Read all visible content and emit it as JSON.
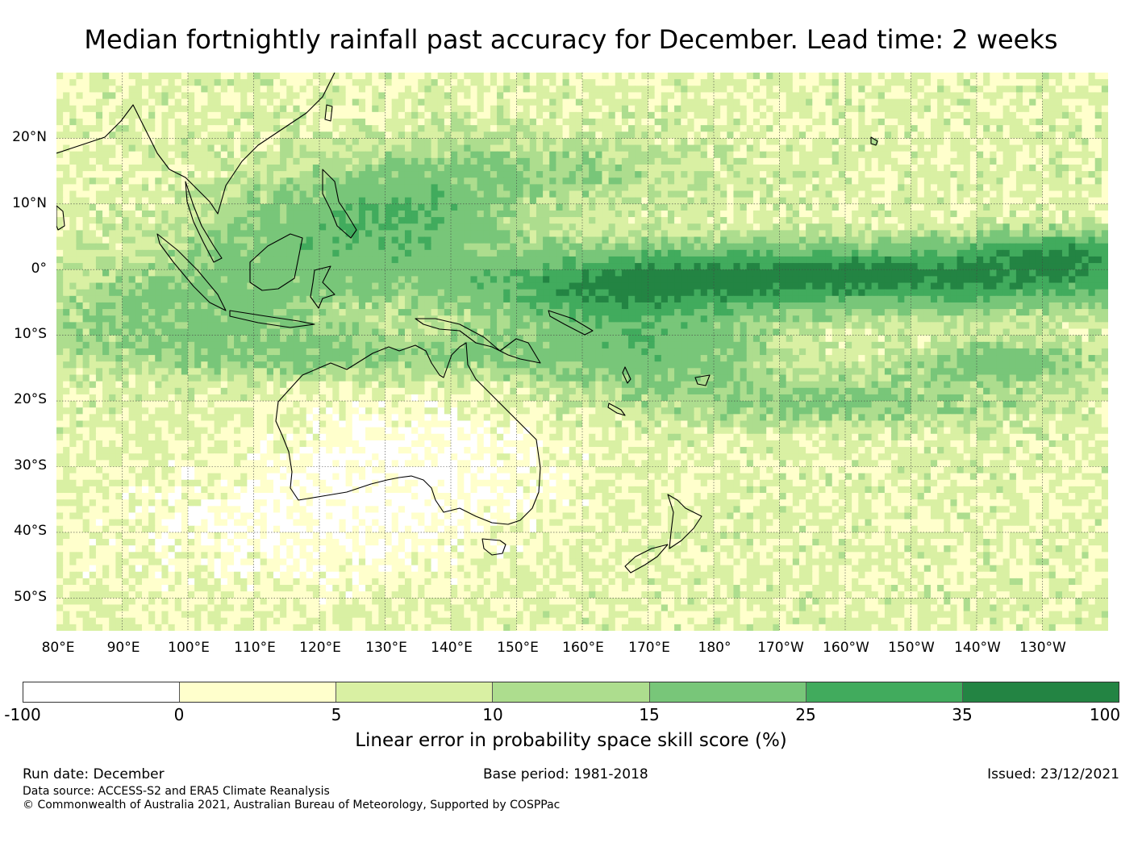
{
  "title": "Median fortnightly rainfall past accuracy for December. Lead time: 2 weeks",
  "map": {
    "lat_labels": [
      "20°N",
      "10°N",
      "0°",
      "10°S",
      "20°S",
      "30°S",
      "40°S",
      "50°S"
    ],
    "lon_labels": [
      "80°E",
      "90°E",
      "100°E",
      "110°E",
      "120°E",
      "130°E",
      "140°E",
      "150°E",
      "160°E",
      "170°E",
      "180°",
      "170°W",
      "160°W",
      "150°W",
      "140°W",
      "130°W"
    ],
    "extent": {
      "lon": [
        80,
        240
      ],
      "lat": [
        -55,
        30
      ]
    }
  },
  "colorbar": {
    "label": "Linear error in probability space skill score (%)",
    "ticks": [
      "-100",
      "0",
      "5",
      "10",
      "15",
      "25",
      "35",
      "100"
    ],
    "colors": [
      "#ffffff",
      "#ffffcc",
      "#d9f0a3",
      "#addd8e",
      "#78c679",
      "#41ab5d",
      "#238443"
    ]
  },
  "footer": {
    "run_date": "Run date: December",
    "base_period": "Base period: 1981-2018",
    "issued": "Issued: 23/12/2021",
    "data_source": "Data source: ACCESS-S2 and ERA5 Climate Reanalysis",
    "copyright": "© Commonwealth of Australia 2021, Australian Bureau of Meteorology, Supported by COSPPac"
  }
}
